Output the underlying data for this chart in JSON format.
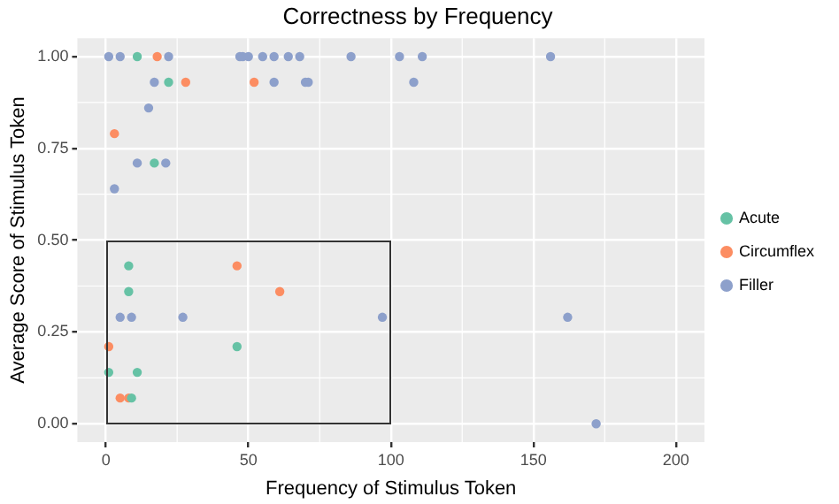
{
  "chart_data": {
    "type": "scatter",
    "title": "Correctness by Frequency",
    "xlabel": "Frequency of Stimulus Token",
    "ylabel": "Average Score of Stimulus Token",
    "series": [
      {
        "name": "Acute",
        "color": "#66c2a5",
        "x": [
          11,
          22,
          17,
          8,
          8,
          46,
          1,
          11,
          9
        ],
        "values": [
          1,
          0.93,
          0.71,
          0.43,
          0.36,
          0.21,
          0.14,
          0.14,
          0.07
        ]
      },
      {
        "name": "Circumflex",
        "color": "#fc8d62",
        "x": [
          18,
          28,
          52,
          3,
          46,
          61,
          1,
          5,
          8
        ],
        "values": [
          1,
          0.93,
          0.93,
          0.79,
          0.43,
          0.36,
          0.21,
          0.07,
          0.07
        ]
      },
      {
        "name": "Filler",
        "color": "#8da0cb",
        "x": [
          1,
          5,
          22,
          47,
          48,
          50,
          55,
          59,
          64,
          68,
          86,
          103,
          111,
          156,
          17,
          59,
          70,
          71,
          108,
          15,
          11,
          21,
          3,
          5,
          9,
          27,
          97,
          162,
          172
        ],
        "values": [
          1,
          1,
          1,
          1,
          1,
          1,
          1,
          1,
          1,
          1,
          1,
          1,
          1,
          1,
          0.93,
          0.93,
          0.93,
          0.93,
          0.93,
          0.86,
          0.71,
          0.71,
          0.64,
          0.29,
          0.29,
          0.29,
          0.29,
          0.29,
          0
        ]
      }
    ],
    "xlim": [
      -10,
      210
    ],
    "xticks": [
      0,
      50,
      100,
      150,
      200
    ],
    "ylim": [
      -0.05,
      1.05
    ],
    "yticks": [
      {
        "value": 0,
        "label": "0.00"
      },
      {
        "value": 0.25,
        "label": "0.25"
      },
      {
        "value": 0.5,
        "label": "0.50"
      },
      {
        "value": 0.75,
        "label": "0.75"
      },
      {
        "value": 1,
        "label": "1.00"
      }
    ],
    "grid": true,
    "legend": "right",
    "marker": "circle"
  }
}
